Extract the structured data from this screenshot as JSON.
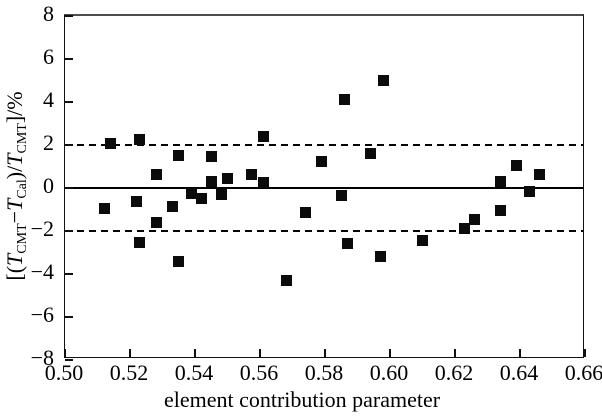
{
  "figure": {
    "background": "#ffffff",
    "axis_color": "#111111",
    "marker_color": "#0b0b0b"
  },
  "chart_data": {
    "type": "scatter",
    "title": "",
    "xlabel": "element contribution parameter",
    "ylabel": "[(TCMT−TCal)/TCMT]/%",
    "ylabel_segments": [
      {
        "text": "[(",
        "style": "normal"
      },
      {
        "text": "T",
        "style": "italic"
      },
      {
        "text": "CMT",
        "style": "sub"
      },
      {
        "text": "−",
        "style": "normal"
      },
      {
        "text": "T",
        "style": "italic"
      },
      {
        "text": "Cal",
        "style": "sub"
      },
      {
        "text": ")/",
        "style": "normal"
      },
      {
        "text": "T",
        "style": "italic"
      },
      {
        "text": "CMT",
        "style": "sub"
      },
      {
        "text": "]/%",
        "style": "normal"
      }
    ],
    "xlim": [
      0.5,
      0.66
    ],
    "ylim": [
      -8,
      8
    ],
    "x_ticks": [
      0.5,
      0.52,
      0.54,
      0.56,
      0.58,
      0.6,
      0.62,
      0.64,
      0.66
    ],
    "x_tick_labels": [
      "0.50",
      "0.52",
      "0.54",
      "0.56",
      "0.58",
      "0.60",
      "0.62",
      "0.64",
      "0.66"
    ],
    "y_ticks": [
      8,
      6,
      4,
      2,
      0,
      -2,
      -4,
      -6,
      -8
    ],
    "y_tick_labels": [
      "8",
      "6",
      "4",
      "2",
      "0",
      "−2",
      "−4",
      "−6",
      "−8"
    ],
    "grid": false,
    "legend": null,
    "marker": "filled-square",
    "reference_lines": [
      {
        "y": 2,
        "style": "dashed"
      },
      {
        "y": 0,
        "style": "solid"
      },
      {
        "y": -2,
        "style": "dashed"
      }
    ],
    "points": [
      [
        0.514,
        2.05
      ],
      [
        0.523,
        2.25
      ],
      [
        0.528,
        0.65
      ],
      [
        0.535,
        1.5
      ],
      [
        0.545,
        1.45
      ],
      [
        0.545,
        0.3
      ],
      [
        0.55,
        0.45
      ],
      [
        0.5575,
        0.65
      ],
      [
        0.561,
        2.4
      ],
      [
        0.561,
        0.25
      ],
      [
        0.579,
        1.25
      ],
      [
        0.586,
        4.1
      ],
      [
        0.594,
        1.6
      ],
      [
        0.598,
        5.0
      ],
      [
        0.634,
        0.3
      ],
      [
        0.639,
        1.05
      ],
      [
        0.646,
        0.65
      ],
      [
        0.512,
        -0.95
      ],
      [
        0.522,
        -0.65
      ],
      [
        0.523,
        -2.55
      ],
      [
        0.528,
        -1.6
      ],
      [
        0.533,
        -0.85
      ],
      [
        0.535,
        -3.4
      ],
      [
        0.539,
        -0.25
      ],
      [
        0.542,
        -0.5
      ],
      [
        0.548,
        -0.3
      ],
      [
        0.568,
        -4.3
      ],
      [
        0.574,
        -1.15
      ],
      [
        0.585,
        -0.35
      ],
      [
        0.587,
        -2.6
      ],
      [
        0.597,
        -3.2
      ],
      [
        0.61,
        -2.45
      ],
      [
        0.623,
        -1.9
      ],
      [
        0.626,
        -1.45
      ],
      [
        0.634,
        -1.05
      ],
      [
        0.643,
        -0.15
      ]
    ]
  }
}
